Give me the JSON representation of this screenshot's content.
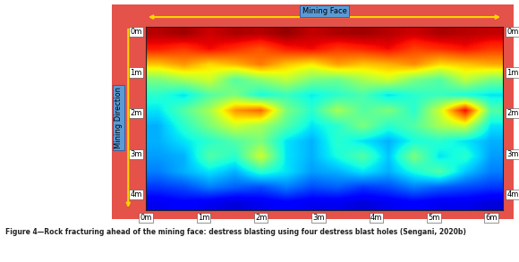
{
  "chart_data": {
    "type": "heatmap",
    "title": "Mining Face",
    "ylabel": "Mining Direction",
    "caption": "Figure 4—Rock fracturing ahead of the mining face: destress blasting using four destress blast holes (Sengani, 2020b)",
    "xlim": [
      0,
      6.2
    ],
    "ylim": [
      4.4,
      -0.1
    ],
    "xticks": [
      {
        "value": 0,
        "label": "0m"
      },
      {
        "value": 1,
        "label": "1m"
      },
      {
        "value": 2,
        "label": "2m"
      },
      {
        "value": 3,
        "label": "3m"
      },
      {
        "value": 4,
        "label": "4m"
      },
      {
        "value": 5,
        "label": "5m"
      },
      {
        "value": 6,
        "label": "6m"
      }
    ],
    "yticks": [
      {
        "value": 0,
        "label": "0m"
      },
      {
        "value": 1,
        "label": "1m"
      },
      {
        "value": 2,
        "label": "2m"
      },
      {
        "value": 3,
        "label": "3m"
      },
      {
        "value": 4,
        "label": "4m"
      }
    ],
    "cell_range": [
      0,
      1
    ],
    "cells": [
      [
        0.95,
        0.97,
        0.93,
        0.96,
        0.95,
        0.98,
        0.94,
        0.96,
        0.97,
        0.95,
        0.93,
        0.96,
        0.95,
        0.94
      ],
      [
        0.88,
        0.85,
        0.9,
        0.86,
        0.82,
        0.88,
        0.9,
        0.85,
        0.87,
        0.9,
        0.84,
        0.86,
        0.89,
        0.85
      ],
      [
        0.7,
        0.75,
        0.68,
        0.72,
        0.78,
        0.7,
        0.66,
        0.74,
        0.7,
        0.72,
        0.76,
        0.68,
        0.7,
        0.73
      ],
      [
        0.5,
        0.55,
        0.6,
        0.45,
        0.52,
        0.58,
        0.5,
        0.48,
        0.55,
        0.6,
        0.5,
        0.45,
        0.58,
        0.5
      ],
      [
        0.4,
        0.35,
        0.45,
        0.5,
        0.38,
        0.42,
        0.36,
        0.4,
        0.44,
        0.35,
        0.4,
        0.42,
        0.38,
        0.35
      ],
      [
        0.35,
        0.45,
        0.55,
        0.75,
        0.8,
        0.5,
        0.4,
        0.55,
        0.45,
        0.5,
        0.4,
        0.6,
        0.9,
        0.45
      ],
      [
        0.3,
        0.4,
        0.5,
        0.6,
        0.55,
        0.45,
        0.35,
        0.4,
        0.5,
        0.4,
        0.45,
        0.55,
        0.6,
        0.35
      ],
      [
        0.3,
        0.35,
        0.4,
        0.45,
        0.5,
        0.35,
        0.3,
        0.4,
        0.35,
        0.3,
        0.38,
        0.4,
        0.35,
        0.3
      ],
      [
        0.28,
        0.3,
        0.45,
        0.4,
        0.6,
        0.35,
        0.3,
        0.38,
        0.45,
        0.32,
        0.5,
        0.35,
        0.4,
        0.28
      ],
      [
        0.25,
        0.3,
        0.35,
        0.3,
        0.4,
        0.35,
        0.28,
        0.3,
        0.35,
        0.3,
        0.38,
        0.45,
        0.32,
        0.25
      ],
      [
        0.18,
        0.2,
        0.25,
        0.22,
        0.2,
        0.25,
        0.2,
        0.22,
        0.18,
        0.2,
        0.25,
        0.22,
        0.2,
        0.18
      ],
      [
        0.1,
        0.12,
        0.1,
        0.08,
        0.1,
        0.12,
        0.1,
        0.1,
        0.08,
        0.1,
        0.12,
        0.1,
        0.1,
        0.08
      ]
    ]
  }
}
